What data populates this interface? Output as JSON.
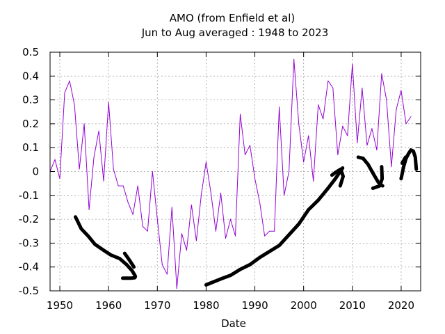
{
  "chart_data": {
    "type": "line",
    "title": "AMO (from Enfield et al)",
    "subtitle": "Jun to Aug averaged : 1948 to 2023",
    "xlabel": "Date",
    "ylabel": "",
    "xlim": [
      1948,
      2024
    ],
    "ylim": [
      -0.5,
      0.5
    ],
    "grid": true,
    "x_ticks": [
      1950,
      1960,
      1970,
      1980,
      1990,
      2000,
      2010,
      2020
    ],
    "x_tick_labels": [
      "1950",
      "1960",
      "1970",
      "1980",
      "1990",
      "2000",
      "2010",
      "2020"
    ],
    "y_ticks": [
      -0.5,
      -0.4,
      -0.3,
      -0.2,
      -0.1,
      0,
      0.1,
      0.2,
      0.3,
      0.4,
      0.5
    ],
    "y_tick_labels": [
      "-0.5",
      "-0.4",
      "-0.3",
      "-0.2",
      "-0.1",
      "0",
      "0.1",
      "0.2",
      "0.3",
      "0.4",
      "0.5"
    ],
    "series": [
      {
        "name": "AMO",
        "color": "#9400d3",
        "x": [
          1948,
          1949,
          1950,
          1951,
          1952,
          1953,
          1954,
          1955,
          1956,
          1957,
          1958,
          1959,
          1960,
          1961,
          1962,
          1963,
          1964,
          1965,
          1966,
          1967,
          1968,
          1969,
          1970,
          1971,
          1972,
          1973,
          1974,
          1975,
          1976,
          1977,
          1978,
          1979,
          1980,
          1981,
          1982,
          1983,
          1984,
          1985,
          1986,
          1987,
          1988,
          1989,
          1990,
          1991,
          1992,
          1993,
          1994,
          1995,
          1996,
          1997,
          1998,
          1999,
          2000,
          2001,
          2002,
          2003,
          2004,
          2005,
          2006,
          2007,
          2008,
          2009,
          2010,
          2011,
          2012,
          2013,
          2014,
          2015,
          2016,
          2017,
          2018,
          2019,
          2020,
          2021,
          2022
        ],
        "values": [
          0.0,
          0.05,
          -0.03,
          0.33,
          0.38,
          0.28,
          0.01,
          0.2,
          -0.16,
          0.06,
          0.17,
          -0.04,
          0.29,
          0.01,
          -0.06,
          -0.06,
          -0.13,
          -0.18,
          -0.06,
          -0.23,
          -0.25,
          0.0,
          -0.2,
          -0.39,
          -0.43,
          -0.15,
          -0.49,
          -0.26,
          -0.33,
          -0.14,
          -0.29,
          -0.1,
          0.04,
          -0.09,
          -0.25,
          -0.09,
          -0.28,
          -0.2,
          -0.27,
          0.24,
          0.07,
          0.11,
          -0.03,
          -0.13,
          -0.27,
          -0.25,
          -0.25,
          0.27,
          -0.1,
          0.0,
          0.47,
          0.2,
          0.04,
          0.15,
          -0.04,
          0.28,
          0.22,
          0.38,
          0.35,
          0.07,
          0.19,
          0.15,
          0.45,
          0.12,
          0.35,
          0.11,
          0.18,
          0.09,
          0.41,
          0.3,
          0.02,
          0.26,
          0.34,
          0.2,
          0.23
        ]
      }
    ],
    "annotations": [
      {
        "name": "hand-drawn-arrow-1950s-60s",
        "color": "#000000",
        "points": [
          [
            1953.2,
            -0.19
          ],
          [
            1954.4,
            -0.24
          ],
          [
            1955.8,
            -0.27
          ],
          [
            1957.2,
            -0.305
          ],
          [
            1959,
            -0.33
          ],
          [
            1960.5,
            -0.35
          ],
          [
            1962.3,
            -0.365
          ],
          [
            1963.7,
            -0.39
          ],
          [
            1964.8,
            -0.415
          ],
          [
            1965.4,
            -0.435
          ],
          [
            1965.5,
            -0.44
          ],
          [
            1965.4,
            -0.445
          ],
          [
            1964.5,
            -0.447
          ],
          [
            1962.9,
            -0.447
          ]
        ],
        "extra": [
          [
            1963.3,
            -0.343
          ],
          [
            1964.4,
            -0.375
          ],
          [
            1965.2,
            -0.4
          ]
        ]
      },
      {
        "name": "hand-drawn-arrow-1980-2008",
        "color": "#000000",
        "points": [
          [
            1980,
            -0.475
          ],
          [
            1981.2,
            -0.465
          ],
          [
            1983,
            -0.45
          ],
          [
            1985,
            -0.435
          ],
          [
            1987,
            -0.41
          ],
          [
            1989,
            -0.39
          ],
          [
            1991,
            -0.36
          ],
          [
            1993,
            -0.335
          ],
          [
            1995,
            -0.31
          ],
          [
            1997,
            -0.265
          ],
          [
            1999,
            -0.22
          ],
          [
            2001,
            -0.16
          ],
          [
            2003,
            -0.12
          ],
          [
            2005,
            -0.07
          ],
          [
            2006.5,
            -0.03
          ],
          [
            2007.5,
            0.0
          ],
          [
            2008,
            0.015
          ]
        ],
        "extra": [
          [
            2005.8,
            -0.015
          ],
          [
            2006.6,
            -0.003
          ],
          [
            2007.6,
            0.01
          ],
          [
            2008.1,
            -0.02
          ],
          [
            2007.5,
            -0.06
          ]
        ]
      },
      {
        "name": "hand-drawn-arrow-2011-2016",
        "color": "#000000",
        "points": [
          [
            2011.2,
            0.06
          ],
          [
            2012.2,
            0.055
          ],
          [
            2013.2,
            0.03
          ],
          [
            2014.3,
            -0.01
          ],
          [
            2015.3,
            -0.045
          ],
          [
            2015.8,
            -0.055
          ],
          [
            2016.2,
            -0.06
          ]
        ],
        "extra": [
          [
            2014.2,
            -0.07
          ],
          [
            2015.6,
            -0.06
          ],
          [
            2016.1,
            -0.03
          ],
          [
            2016,
            0.02
          ]
        ]
      },
      {
        "name": "hand-drawn-arrow-2020-2022",
        "color": "#000000",
        "points": [
          [
            2020,
            -0.03
          ],
          [
            2020.5,
            0.02
          ],
          [
            2021,
            0.055
          ],
          [
            2021.5,
            0.075
          ],
          [
            2022,
            0.09
          ],
          [
            2022.5,
            0.085
          ],
          [
            2022.9,
            0.06
          ],
          [
            2023.1,
            0.01
          ]
        ],
        "extra": [
          [
            2020.2,
            0.035
          ],
          [
            2020.9,
            0.06
          ]
        ]
      }
    ]
  }
}
